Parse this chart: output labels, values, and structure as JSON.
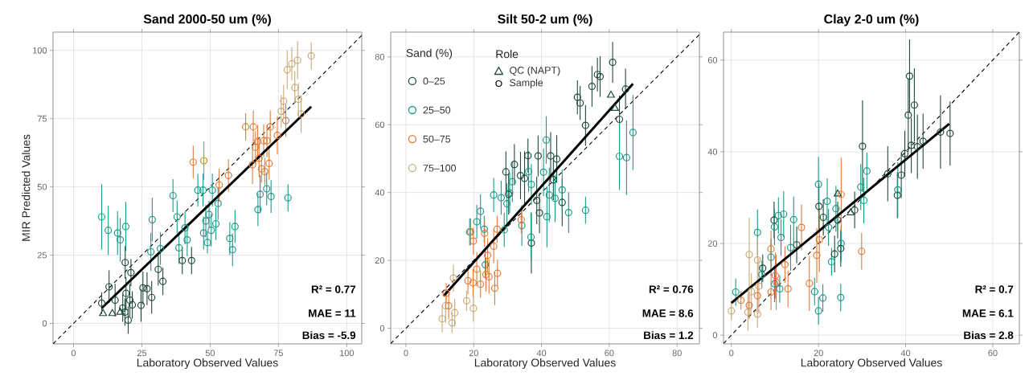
{
  "chart_data": [
    {
      "type": "scatter",
      "title": "Sand 2000-50 um (%)",
      "xlabel": "Laboratory Observed Values",
      "ylabel": "MIR Predicted Values",
      "xlim": [
        -7.5,
        105.5
      ],
      "ylim": [
        -7.5,
        106.7
      ],
      "xticks": [
        0,
        25,
        50,
        75,
        100
      ],
      "yticks": [
        0,
        25,
        50,
        75,
        100
      ],
      "grid": true,
      "marker": "circle",
      "legend": false,
      "annotations": [
        "R² = 0.77",
        "MAE = 11",
        "Bias = -5.9"
      ],
      "series": [
        {
          "type": "line",
          "line_style": "dashed",
          "marker": "none",
          "color": "#000000",
          "x": [
            -7.5,
            105.5
          ],
          "values": [
            -7.5,
            105.5
          ]
        },
        {
          "color": "#c9a978",
          "x": [
            87.0,
            78.2,
            79.9,
            82.0,
            81.0,
            76.9,
            82.3,
            76.0,
            83.3
          ],
          "values": [
            98.0,
            92.9,
            95.1,
            96.4,
            86.4,
            81.4,
            82.1,
            77.7,
            76.7
          ],
          "errors": [
            5,
            7,
            6,
            7,
            6,
            6,
            6,
            6,
            7
          ]
        },
        {
          "color": "#e07b39",
          "x": [
            77.7,
            63.0,
            65.8,
            72.0,
            74.6,
            67.4,
            69.6,
            70.8,
            66.6,
            67.9,
            71.6,
            65.5,
            68.8,
            70.0,
            43.8,
            47.7,
            56.7,
            53.3
          ],
          "values": [
            74.3,
            72.0,
            72.0,
            72.0,
            68.9,
            66.7,
            66.9,
            66.9,
            64.5,
            60.5,
            58.6,
            58.1,
            56.6,
            55.6,
            59.1,
            59.6,
            54.2,
            50.7
          ],
          "errors": [
            6,
            5,
            6,
            6,
            7,
            6,
            6,
            6,
            6,
            7,
            6,
            7,
            5,
            5,
            6,
            7,
            6,
            6
          ]
        },
        {
          "color": "#1a9a8a",
          "x": [
            10.3,
            12.7,
            16.1,
            17.1,
            19.1,
            28.8,
            28.3,
            31.8,
            36.4,
            37.9,
            38.6,
            40.8,
            41.6,
            45.5,
            47.4,
            50.8,
            49.6,
            48.4,
            47.6,
            50.4,
            49.0,
            52.9,
            52.1,
            59.1,
            57.2,
            58.2,
            68.3,
            70.7,
            72.3,
            67.5,
            78.5
          ],
          "values": [
            39.0,
            34.1,
            33.1,
            30.6,
            35.5,
            38.0,
            26.2,
            27.4,
            46.8,
            39.0,
            27.7,
            35.0,
            30.6,
            48.8,
            48.8,
            48.8,
            39.9,
            37.5,
            33.1,
            34.1,
            29.6,
            43.9,
            36.5,
            35.5,
            31.1,
            27.0,
            47.3,
            49.3,
            46.5,
            41.7,
            46.0
          ],
          "errors": [
            12,
            9,
            8,
            8,
            9,
            8,
            7,
            6,
            6,
            6,
            6,
            6,
            6,
            6,
            6,
            6,
            5,
            6,
            6,
            6,
            4,
            6,
            6,
            6,
            6,
            6,
            7,
            6,
            6,
            6,
            5
          ]
        },
        {
          "color": "#1f4a3c",
          "x": [
            18.9,
            21.0,
            13.0,
            31.0,
            32.7,
            39.8,
            43.2,
            25.4,
            26.9,
            28.6,
            24.7,
            10.3,
            15.2,
            19.2,
            20.6,
            18.0,
            21.5,
            18.8,
            20.0
          ],
          "values": [
            22.3,
            18.6,
            13.4,
            19.8,
            15.4,
            23.0,
            23.0,
            13.0,
            12.7,
            9.5,
            6.6,
            7.4,
            8.5,
            11.0,
            8.5,
            5.6,
            6.8,
            4.1,
            1.2
          ],
          "errors": [
            6,
            5,
            6,
            6,
            5,
            5,
            5,
            6,
            6,
            6,
            6,
            4,
            6,
            6,
            6,
            5,
            5,
            5,
            5
          ]
        },
        {
          "color": "#1f4a3c",
          "marker": "triangle",
          "x": [
            10.8,
            14.2,
            17.1
          ],
          "values": [
            3.6,
            3.6,
            4.1
          ]
        },
        {
          "type": "line",
          "line_style": "solid",
          "marker": "none",
          "color": "#000000",
          "x": [
            10.3,
            87.0
          ],
          "values": [
            5.6,
            79.4
          ]
        }
      ]
    },
    {
      "type": "scatter",
      "title": "Silt 50-2 um (%)",
      "xlabel": "Laboratory Observed Values",
      "xlim": [
        -4.5,
        86.6
      ],
      "ylim": [
        -4.6,
        87.3
      ],
      "xticks": [
        0,
        20,
        40,
        60,
        80
      ],
      "yticks": [
        0,
        20,
        40,
        60,
        80
      ],
      "grid": true,
      "marker": "circle",
      "legend": "top left",
      "legend_title": "Sand (%)",
      "annotations": [
        "R² = 0.76",
        "MAE = 8.6",
        "Bias = 1.2",
        "Role",
        "Sample"
      ],
      "series": [
        {
          "type": "line",
          "line_style": "dashed",
          "marker": "none",
          "color": "#000000",
          "x": [
            -4.5,
            86.6
          ],
          "values": [
            -4.5,
            86.6
          ]
        },
        {
          "name": "0–25",
          "color": "#1f4a3c",
          "x": [
            61.0,
            56.5,
            57.3,
            54.9,
            50.6,
            51.4,
            64.8,
            63.0,
            53.0,
            36.0,
            39.0,
            42.7,
            44.5,
            32.0,
            29.5,
            33.8,
            35.0,
            43.5,
            30.3,
            38.6,
            46.1,
            39.4,
            37.0
          ],
          "values": [
            78.4,
            74.8,
            74.2,
            71.3,
            68.1,
            66.4,
            70.5,
            61.6,
            59.8,
            50.9,
            50.8,
            50.8,
            49.9,
            48.3,
            46.1,
            45.0,
            44.2,
            43.8,
            39.5,
            37.7,
            37.1,
            34.0,
            25.1
          ],
          "errors": [
            6,
            5,
            6,
            6,
            5,
            5,
            6,
            7,
            6,
            5,
            6,
            7,
            7,
            6,
            6,
            7,
            8,
            6,
            6,
            7,
            7,
            6,
            9
          ]
        },
        {
          "name": "QC (NAPT)",
          "color": "#1f4a3c",
          "marker": "triangle",
          "x": [
            60.5,
            61.7
          ],
          "values": [
            68.7,
            64.8
          ]
        },
        {
          "name": "25–50",
          "color": "#1a9a8a",
          "x": [
            41.4,
            67.0,
            63.0,
            65.1,
            36.2,
            40.6,
            37.0,
            31.4,
            30.6,
            25.9,
            28.1,
            29.8,
            42.3,
            44.0,
            46.1,
            48.0,
            53.0,
            41.6,
            34.2,
            36.9,
            22.0,
            20.9,
            23.1,
            29.0,
            18.8,
            23.4
          ],
          "values": [
            55.5,
            57.7,
            50.7,
            50.3,
            46.2,
            46.0,
            42.4,
            43.2,
            39.9,
            39.3,
            38.5,
            36.7,
            39.3,
            38.3,
            40.8,
            34.1,
            34.8,
            32.9,
            30.3,
            26.9,
            34.5,
            31.4,
            29.2,
            29.0,
            28.4,
            18.7
          ],
          "errors": [
            7,
            11,
            10,
            11,
            6,
            7,
            6,
            6,
            6,
            5,
            5,
            6,
            8,
            7,
            6,
            6,
            4,
            9,
            6,
            7,
            5,
            5,
            4,
            5,
            4,
            4
          ]
        },
        {
          "name": "50–75",
          "color": "#e07b39",
          "x": [
            34.0,
            26.9,
            19.1,
            23.2,
            19.9,
            25.9,
            24.1,
            20.9,
            23.6,
            27.0,
            18.3,
            19.8,
            22.0,
            24.5,
            26.2,
            11.9,
            12.6
          ],
          "values": [
            32.0,
            29.2,
            28.4,
            28.0,
            25.7,
            24.2,
            21.5,
            17.4,
            15.8,
            16.2,
            14.0,
            13.4,
            13.0,
            15.2,
            11.8,
            10.3,
            6.6
          ],
          "errors": [
            4,
            4,
            4,
            4,
            4,
            5,
            5,
            5,
            5,
            4,
            4,
            4,
            4,
            5,
            5,
            3,
            4
          ]
        },
        {
          "name": "75–100",
          "color": "#c9a978",
          "x": [
            14.0,
            17.9,
            19.9,
            11.7,
            14.4,
            10.7,
            13.6
          ],
          "values": [
            14.8,
            8.1,
            5.9,
            6.6,
            4.6,
            2.8,
            1.6
          ],
          "errors": [
            4,
            3,
            4,
            5,
            4,
            4,
            3
          ]
        },
        {
          "type": "line",
          "line_style": "solid",
          "marker": "none",
          "color": "#000000",
          "x": [
            11.1,
            67.0
          ],
          "values": [
            9.5,
            72.1
          ]
        }
      ]
    },
    {
      "type": "scatter",
      "title": "Clay 2-0 um (%)",
      "xlabel": "Laboratory Observed Values",
      "xlim": [
        -1.8,
        66.1
      ],
      "ylim": [
        -1.9,
        66.1
      ],
      "xticks": [
        0,
        20,
        40,
        60
      ],
      "yticks": [
        0,
        20,
        40,
        60
      ],
      "grid": true,
      "marker": "circle",
      "legend": false,
      "annotations": [
        "R² = 0.7",
        "MAE = 6.1",
        "Bias = 2.8"
      ],
      "series": [
        {
          "type": "line",
          "line_style": "dashed",
          "marker": "none",
          "color": "#000000",
          "x": [
            -1.8,
            66.1
          ],
          "values": [
            -1.8,
            66.1
          ]
        },
        {
          "color": "#1f4a3c",
          "x": [
            40.9,
            40.6,
            42.0,
            30.1,
            48.0,
            50.2,
            44.0,
            41.3,
            42.7,
            39.8,
            39.0,
            35.9,
            38.1,
            20.1,
            21.1,
            28.3,
            24.4,
            9.8,
            15.0,
            25.1,
            23.7,
            7.2
          ],
          "values": [
            56.5,
            48.0,
            50.2,
            41.2,
            44.3,
            44.0,
            42.3,
            41.4,
            41.1,
            39.6,
            34.9,
            35.2,
            30.5,
            28.1,
            25.7,
            27.3,
            25.1,
            25.1,
            19.7,
            18.9,
            17.7,
            14.6
          ],
          "errors": [
            8,
            8,
            8,
            10,
            8,
            7,
            6,
            6,
            7,
            5,
            5,
            6,
            5,
            5,
            4,
            4,
            4,
            4,
            4,
            4,
            4,
            3
          ]
        },
        {
          "color": "#1f4a3c",
          "marker": "triangle",
          "x": [
            24.4,
            27.4
          ],
          "values": [
            30.8,
            26.7
          ]
        },
        {
          "color": "#1a9a8a",
          "x": [
            20.0,
            22.0,
            29.7,
            31.1,
            30.4,
            38.2,
            24.0,
            22.3,
            14.3,
            12.0,
            10.8,
            9.9,
            6.0,
            11.4,
            13.6,
            9.1,
            25.2,
            23.0,
            7.0,
            9.9,
            11.1,
            1.0,
            19.1,
            21.0,
            25.1,
            20.0
          ],
          "values": [
            32.9,
            29.2,
            32.3,
            35.8,
            29.4,
            31.7,
            27.6,
            23.5,
            25.2,
            26.4,
            26.1,
            23.6,
            22.4,
            21.3,
            19.1,
            17.0,
            20.0,
            16.0,
            13.2,
            11.2,
            10.1,
            9.4,
            9.5,
            8.1,
            8.2,
            5.3
          ],
          "errors": [
            6,
            5,
            5,
            4,
            5,
            6,
            5,
            4,
            5,
            5,
            4,
            4,
            5,
            4,
            5,
            4,
            4,
            3,
            3,
            4,
            3,
            3,
            3,
            3,
            3,
            3
          ]
        },
        {
          "color": "#e07b39",
          "x": [
            25.2,
            16.1,
            20.2,
            19.6,
            29.9,
            9.1,
            12.3,
            10.1,
            10.3,
            9.1,
            13.0,
            17.9,
            6.0,
            2.2,
            4.1
          ],
          "values": [
            30.7,
            23.5,
            20.8,
            17.4,
            18.3,
            18.8,
            15.4,
            13.0,
            11.5,
            9.4,
            10.1,
            11.3,
            8.6,
            7.6,
            6.5
          ],
          "errors": [
            8,
            5,
            7,
            6,
            4,
            4,
            4,
            5,
            6,
            4,
            4,
            6,
            3,
            2,
            3
          ]
        },
        {
          "color": "#c9a978",
          "x": [
            4.1,
            6.0,
            6.3,
            4.6,
            0.0,
            3.8,
            6.0
          ],
          "values": [
            17.6,
            16.4,
            10.7,
            9.5,
            5.3,
            5.0,
            4.6
          ],
          "errors": [
            8,
            5,
            6,
            4,
            2,
            4,
            3
          ]
        },
        {
          "type": "line",
          "line_style": "solid",
          "marker": "none",
          "color": "#000000",
          "x": [
            0.0,
            50.0
          ],
          "values": [
            7.0,
            46.1
          ]
        }
      ]
    }
  ]
}
